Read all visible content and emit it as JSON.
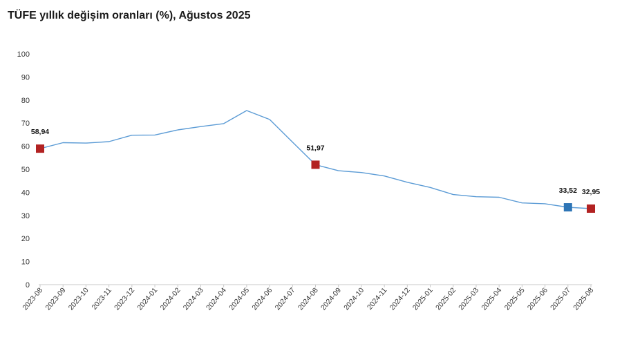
{
  "chart_data": {
    "type": "line",
    "title": "TÜFE yıllık değişim oranları (%), Ağustos 2025",
    "xlabel": "",
    "ylabel": "",
    "ylim": [
      0,
      100
    ],
    "yticks": [
      0,
      10,
      20,
      30,
      40,
      50,
      60,
      70,
      80,
      90,
      100
    ],
    "grid": false,
    "legend": "none",
    "line_color": "#5b9bd5",
    "categories": [
      "2023-08",
      "2023-09",
      "2023-10",
      "2023-11",
      "2023-12",
      "2024-01",
      "2024-02",
      "2024-03",
      "2024-04",
      "2024-05",
      "2024-06",
      "2024-07",
      "2024-08",
      "2024-09",
      "2024-10",
      "2024-11",
      "2024-12",
      "2025-01",
      "2025-02",
      "2025-03",
      "2025-04",
      "2025-05",
      "2025-06",
      "2025-07",
      "2025-08"
    ],
    "series": [
      {
        "values": [
          58.94,
          61.53,
          61.36,
          61.98,
          64.77,
          64.86,
          67.07,
          68.5,
          69.8,
          75.45,
          71.6,
          61.78,
          51.97,
          49.38,
          48.58,
          47.09,
          44.38,
          42.12,
          39.05,
          38.1,
          37.86,
          35.41,
          35.05,
          33.52,
          32.95
        ]
      }
    ],
    "highlighted_points": [
      {
        "category": "2023-08",
        "value": 58.94,
        "label": "58,94",
        "color": "#b22222"
      },
      {
        "category": "2024-08",
        "value": 51.97,
        "label": "51,97",
        "color": "#b22222"
      },
      {
        "category": "2025-07",
        "value": 33.52,
        "label": "33,52",
        "color": "#2e75b6"
      },
      {
        "category": "2025-08",
        "value": 32.95,
        "label": "32,95",
        "color": "#b22222"
      }
    ]
  }
}
